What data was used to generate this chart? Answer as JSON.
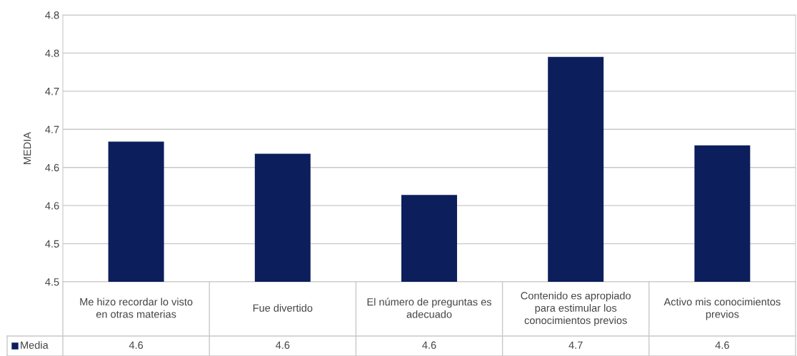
{
  "chart_data": {
    "type": "bar",
    "ylabel": "MEDIA",
    "categories": [
      "Me hizo recordar lo visto en otras materias",
      "Fue divertido",
      "El número de preguntas es adecuado",
      "Contenido es apropiado para estimular los conocimientos previos",
      "Activo mis conocimientos previos"
    ],
    "series": [
      {
        "name": "Media",
        "color": "#0c1e5b",
        "values": [
          4.634,
          4.618,
          4.564,
          4.745,
          4.629
        ],
        "value_labels": [
          "4.6",
          "4.6",
          "4.6",
          "4.7",
          "4.6"
        ]
      }
    ],
    "ylim": [
      4.45,
      4.8
    ],
    "yticks": [
      {
        "value": 4.45,
        "label": "4.5"
      },
      {
        "value": 4.5,
        "label": "4.5"
      },
      {
        "value": 4.55,
        "label": "4.6"
      },
      {
        "value": 4.6,
        "label": "4.6"
      },
      {
        "value": 4.65,
        "label": "4.7"
      },
      {
        "value": 4.7,
        "label": "4.7"
      },
      {
        "value": 4.75,
        "label": "4.8"
      },
      {
        "value": 4.8,
        "label": "4.8"
      }
    ],
    "grid": "y",
    "legend": "bottom left"
  }
}
